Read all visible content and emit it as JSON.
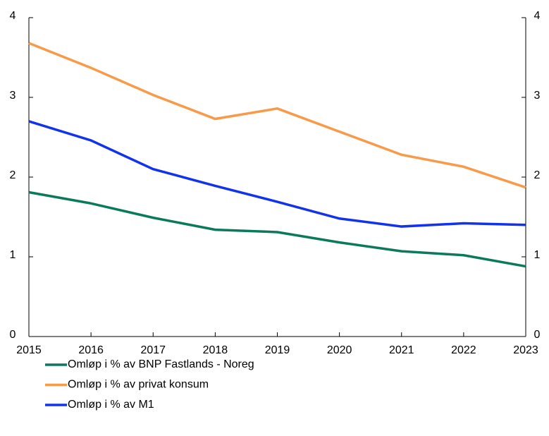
{
  "chart_data": {
    "type": "line",
    "categories": [
      "2015",
      "2016",
      "2017",
      "2018",
      "2019",
      "2020",
      "2021",
      "2022",
      "2023"
    ],
    "series": [
      {
        "name": "Omløp i % av BNP Fastlands - Noreg",
        "color": "#0b7a5c",
        "values": [
          1.81,
          1.67,
          1.49,
          1.34,
          1.31,
          1.18,
          1.07,
          1.02,
          0.88
        ]
      },
      {
        "name": "Omløp i % av privat konsum",
        "color": "#f89a48",
        "values": [
          3.68,
          3.37,
          3.03,
          2.73,
          2.86,
          2.57,
          2.28,
          2.13,
          1.87
        ]
      },
      {
        "name": "Omløp i % av M1",
        "color": "#1233ee",
        "values": [
          2.7,
          2.46,
          2.1,
          1.89,
          1.69,
          1.48,
          1.38,
          1.42,
          1.4
        ]
      }
    ],
    "ylim": [
      0,
      4
    ],
    "yticks": [
      0,
      1,
      2,
      3,
      4
    ],
    "y2lim": [
      0,
      4
    ],
    "y2ticks": [
      0,
      1,
      2,
      3,
      4
    ],
    "grid": false,
    "legend": "bottom"
  }
}
